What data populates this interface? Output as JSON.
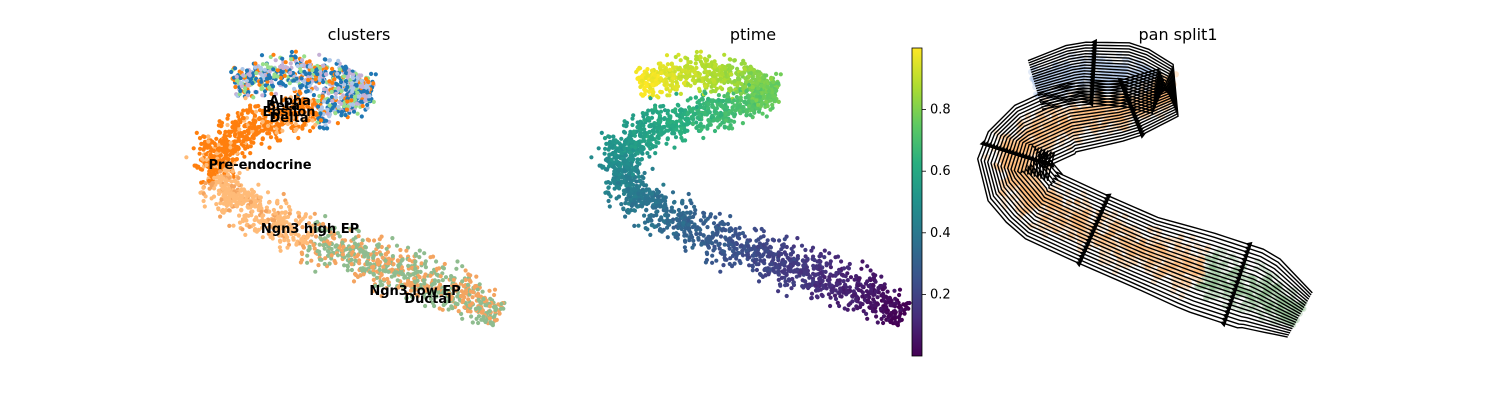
{
  "chart_data": [
    {
      "type": "scatter",
      "title": "clusters",
      "xlabel": "",
      "ylabel": "",
      "grid": false,
      "categories": [
        {
          "name": "Alpha",
          "color": "#1f77b4"
        },
        {
          "name": "Beta",
          "color": "#aec7e8"
        },
        {
          "name": "Epsilon",
          "color": "#c5b0d5"
        },
        {
          "name": "Delta",
          "color": "#98df8a"
        },
        {
          "name": "Pre-endocrine",
          "color": "#ff7f0e"
        },
        {
          "name": "Ngn3 high EP",
          "color": "#ffbb78"
        },
        {
          "name": "Ngn3 low EP",
          "color": "#f4a460"
        },
        {
          "name": "Ductal",
          "color": "#8fbc8f"
        }
      ],
      "annotations": [
        "Alpha",
        "Beta",
        "Epsilon",
        "Delta",
        "Pre-endocrine",
        "Ngn3 high EP",
        "Ngn3 low EP",
        "Ductal"
      ]
    },
    {
      "type": "scatter",
      "title": "ptime",
      "colorscale": "viridis",
      "colorbar": {
        "min": 0.0,
        "max": 1.0,
        "ticks": [
          "0.2",
          "0.4",
          "0.6",
          "0.8"
        ]
      },
      "value_range": [
        0.0,
        1.0
      ]
    },
    {
      "type": "scatter",
      "title": "pan split1",
      "overlay": "streamplot",
      "stream_color": "#000000",
      "point_colors": [
        "#ffbb78",
        "#aec7e8",
        "#8fbc8f"
      ]
    }
  ],
  "colors": {
    "stream": "#000000",
    "background": "#ffffff"
  }
}
